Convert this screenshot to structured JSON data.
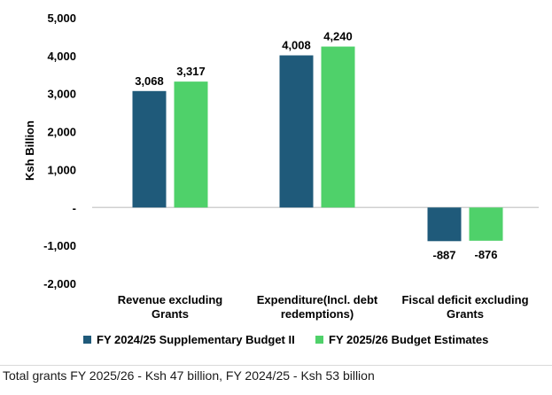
{
  "chart_data": {
    "type": "bar",
    "title": "",
    "xlabel": "",
    "ylabel": "Ksh Billion",
    "ylim": [
      -2000,
      5000
    ],
    "yticks": [
      -2000,
      -1000,
      0,
      1000,
      2000,
      3000,
      4000,
      5000
    ],
    "ytick_labels": [
      "-2,000",
      "-1,000",
      "-",
      "1,000",
      "2,000",
      "3,000",
      "4,000",
      "5,000"
    ],
    "categories": [
      [
        "Revenue excluding",
        "Grants"
      ],
      [
        "Expenditure(Incl. debt",
        "redemptions)"
      ],
      [
        "Fiscal deficit excluding",
        "Grants"
      ]
    ],
    "series": [
      {
        "name": "FY 2024/25 Supplementary Budget II",
        "color": "#1f5a7a",
        "values": [
          3068,
          4008,
          -887
        ],
        "labels": [
          "3,068",
          "4,008",
          "-887"
        ]
      },
      {
        "name": "FY 2025/26 Budget Estimates",
        "color": "#4fd16a",
        "values": [
          3317,
          4240,
          -876
        ],
        "labels": [
          "3,317",
          "4,240",
          "-876"
        ]
      }
    ],
    "grid": false,
    "legend_position": "bottom"
  },
  "footnote": "Total grants FY 2025/26 - Ksh 47 billion, FY 2024/25 - Ksh 53 billion"
}
